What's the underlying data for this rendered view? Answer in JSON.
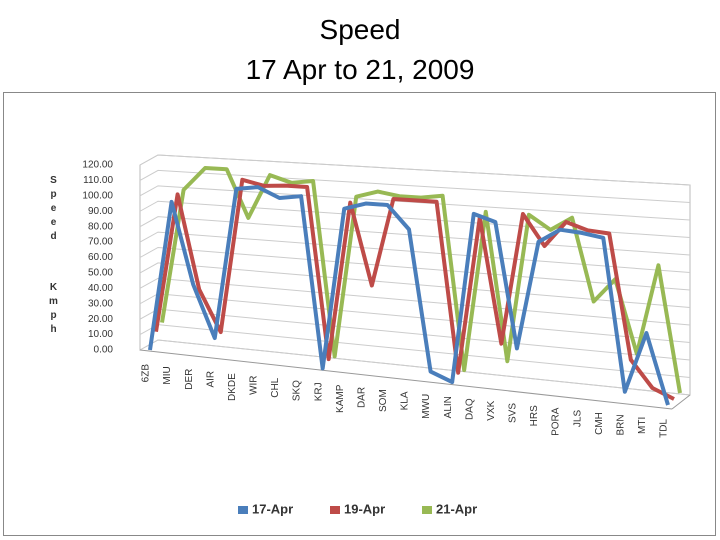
{
  "chart_data": {
    "type": "line",
    "title": "Speed",
    "subtitle": "17 Apr to 21, 2009",
    "y_label_lines": [
      "Speed",
      "Kmph"
    ],
    "categories": [
      "6ZB",
      "MIU",
      "DER",
      "AIR",
      "DKDE",
      "WIR",
      "CHL",
      "SKQ",
      "KRJ",
      "KAMP",
      "DAR",
      "SOM",
      "KLA",
      "MWU",
      "ALIN",
      "DAQ",
      "VXK",
      "SVS",
      "HRS",
      "PORA",
      "JLS",
      "CMH",
      "BRN",
      "MTI",
      "TDL"
    ],
    "series": [
      {
        "name": "17-Apr",
        "color": "#4a7ebb",
        "values": [
          0,
          97,
          45,
          12,
          108,
          110,
          104,
          106,
          0,
          100,
          104,
          104,
          90,
          5,
          0,
          102,
          98,
          24,
          88,
          96,
          95,
          93,
          5,
          40,
          0
        ]
      },
      {
        "name": "19-Apr",
        "color": "#be4b48",
        "values": [
          8,
          98,
          38,
          12,
          110,
          107,
          108,
          108,
          2,
          100,
          50,
          104,
          104,
          104,
          2,
          96,
          22,
          100,
          82,
          97,
          93,
          92,
          20,
          5,
          0
        ]
      },
      {
        "name": "21-Apr",
        "color": "#98b954",
        "values": [
          10,
          97,
          112,
          112,
          82,
          110,
          106,
          108,
          0,
          100,
          104,
          102,
          102,
          104,
          0,
          96,
          8,
          96,
          88,
          96,
          48,
          62,
          20,
          72,
          0
        ]
      }
    ],
    "ylim": [
      0,
      120
    ],
    "yticks": [
      {
        "value": 0,
        "label": "0.00"
      },
      {
        "value": 10,
        "label": "10.00"
      },
      {
        "value": 20,
        "label": "20.00"
      },
      {
        "value": 30,
        "label": "30.00"
      },
      {
        "value": 40,
        "label": "40.00"
      },
      {
        "value": 50,
        "label": "50.00"
      },
      {
        "value": 60,
        "label": "60.00"
      },
      {
        "value": 70,
        "label": "70.00"
      },
      {
        "value": 80,
        "label": "80.00"
      },
      {
        "value": 90,
        "label": "90.00"
      },
      {
        "value": 100,
        "label": "100.00"
      },
      {
        "value": 110,
        "label": "110.00"
      },
      {
        "value": 120,
        "label": "120.00"
      }
    ],
    "grid": true,
    "legend": "bottom"
  }
}
